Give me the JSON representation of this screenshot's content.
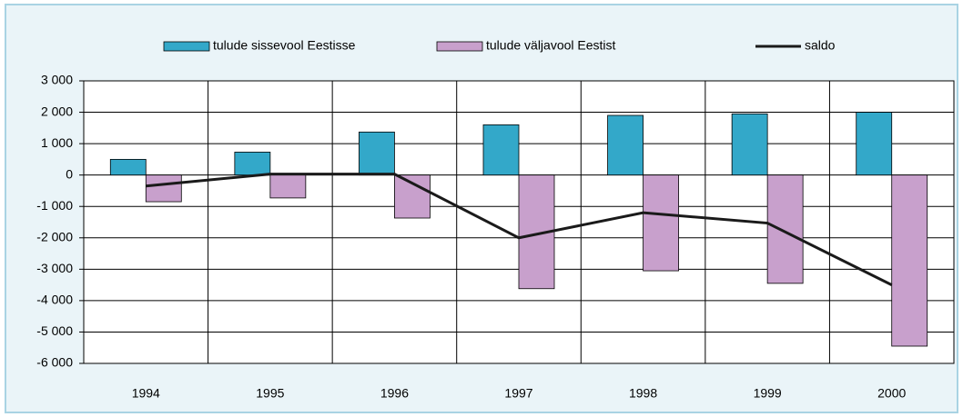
{
  "chart_data": {
    "type": "bar",
    "categories": [
      "1994",
      "1995",
      "1996",
      "1997",
      "1998",
      "1999",
      "2000"
    ],
    "series": [
      {
        "name": "tulude sissevool Eestisse",
        "color": "#33a8c9",
        "values": [
          500,
          730,
          1370,
          1600,
          1900,
          1950,
          2000
        ]
      },
      {
        "name": "tulude väljavool Eestist",
        "color": "#c8a0cc",
        "values": [
          -850,
          -730,
          -1370,
          -3620,
          -3050,
          -3450,
          -5450
        ]
      },
      {
        "name": "saldo",
        "color": "#1a1a1a",
        "type": "line",
        "values": [
          -350,
          30,
          30,
          -2000,
          -1200,
          -1530,
          -3500
        ]
      }
    ],
    "ylim": [
      -6000,
      3000
    ],
    "yticks": [
      {
        "value": -6000,
        "label": "-6 000"
      },
      {
        "value": -5000,
        "label": "-5 000"
      },
      {
        "value": -4000,
        "label": "-4 000"
      },
      {
        "value": -3000,
        "label": "-3 000"
      },
      {
        "value": -2000,
        "label": "-2 000"
      },
      {
        "value": -1000,
        "label": "-1 000"
      },
      0,
      {
        "value": 1000,
        "label": "1 000"
      },
      {
        "value": 2000,
        "label": "2 000"
      },
      {
        "value": 3000,
        "label": "3 000"
      }
    ],
    "grid": true
  }
}
